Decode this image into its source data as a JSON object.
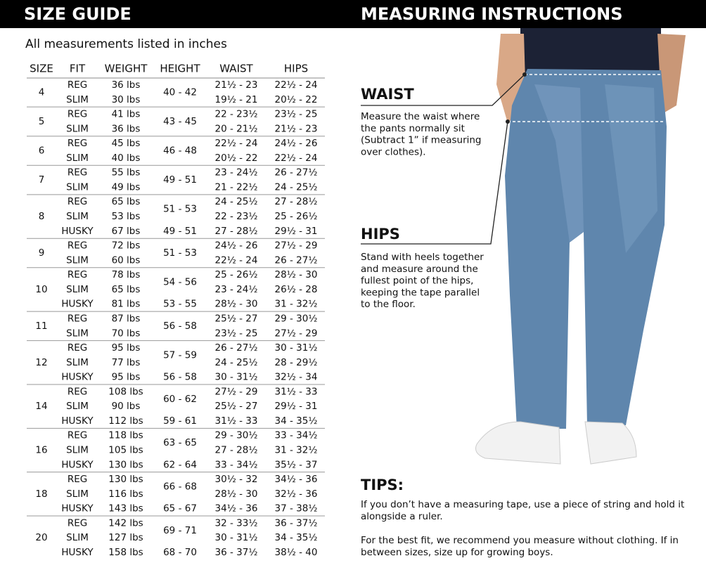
{
  "header": {
    "left_title": "SIZE GUIDE",
    "right_title": "MEASURING INSTRUCTIONS"
  },
  "table": {
    "note": "All measurements listed in inches",
    "columns": [
      "SIZE",
      "FIT",
      "WEIGHT",
      "HEIGHT",
      "WAIST",
      "HIPS"
    ],
    "groups": [
      {
        "size": "4",
        "bands": [
          {
            "height": "40 - 42",
            "rows": [
              [
                "REG",
                "36 lbs",
                "21½ - 23",
                "22½ - 24"
              ],
              [
                "SLIM",
                "30 lbs",
                "19½ - 21",
                "20½ - 22"
              ]
            ]
          }
        ]
      },
      {
        "size": "5",
        "bands": [
          {
            "height": "43 - 45",
            "rows": [
              [
                "REG",
                "41 lbs",
                "22 - 23½",
                "23½ - 25"
              ],
              [
                "SLIM",
                "36 lbs",
                "20 - 21½",
                "21½ - 23"
              ]
            ]
          }
        ]
      },
      {
        "size": "6",
        "bands": [
          {
            "height": "46 - 48",
            "rows": [
              [
                "REG",
                "45 lbs",
                "22½ - 24",
                "24½ - 26"
              ],
              [
                "SLIM",
                "40 lbs",
                "20½ - 22",
                "22½ - 24"
              ]
            ]
          }
        ]
      },
      {
        "size": "7",
        "bands": [
          {
            "height": "49 - 51",
            "rows": [
              [
                "REG",
                "55 lbs",
                "23 - 24½",
                "26 - 27½"
              ],
              [
                "SLIM",
                "49 lbs",
                "21 - 22½",
                "24 - 25½"
              ]
            ]
          }
        ]
      },
      {
        "size": "8",
        "bands": [
          {
            "height": "51 - 53",
            "rows": [
              [
                "REG",
                "65 lbs",
                "24 - 25½",
                "27 - 28½"
              ],
              [
                "SLIM",
                "53 lbs",
                "22 - 23½",
                "25 - 26½"
              ]
            ]
          },
          {
            "height": "49 - 51",
            "rows": [
              [
                "HUSKY",
                "67 lbs",
                "27 - 28½",
                "29½ - 31"
              ]
            ]
          }
        ]
      },
      {
        "size": "9",
        "bands": [
          {
            "height": "51 - 53",
            "rows": [
              [
                "REG",
                "72 lbs",
                "24½ - 26",
                "27½ - 29"
              ],
              [
                "SLIM",
                "60 lbs",
                "22½ - 24",
                "26 - 27½"
              ]
            ]
          }
        ]
      },
      {
        "size": "10",
        "bands": [
          {
            "height": "54 - 56",
            "rows": [
              [
                "REG",
                "78 lbs",
                "25 - 26½",
                "28½ - 30"
              ],
              [
                "SLIM",
                "65 lbs",
                "23 - 24½",
                "26½ - 28"
              ]
            ]
          },
          {
            "height": "53 - 55",
            "rows": [
              [
                "HUSKY",
                "81 lbs",
                "28½ - 30",
                "31 - 32½"
              ]
            ]
          }
        ]
      },
      {
        "size": "11",
        "bands": [
          {
            "height": "56 - 58",
            "rows": [
              [
                "REG",
                "87 lbs",
                "25½ - 27",
                "29 - 30½"
              ],
              [
                "SLIM",
                "70 lbs",
                "23½ - 25",
                "27½ - 29"
              ]
            ]
          }
        ]
      },
      {
        "size": "12",
        "bands": [
          {
            "height": "57 - 59",
            "rows": [
              [
                "REG",
                "95 lbs",
                "26 - 27½",
                "30 - 31½"
              ],
              [
                "SLIM",
                "77 lbs",
                "24 - 25½",
                "28 - 29½"
              ]
            ]
          },
          {
            "height": "56 - 58",
            "rows": [
              [
                "HUSKY",
                "95 lbs",
                "30 - 31½",
                "32½ - 34"
              ]
            ]
          }
        ]
      },
      {
        "size": "14",
        "bands": [
          {
            "height": "60 - 62",
            "rows": [
              [
                "REG",
                "108 lbs",
                "27½ - 29",
                "31½ - 33"
              ],
              [
                "SLIM",
                "90 lbs",
                "25½ - 27",
                "29½ - 31"
              ]
            ]
          },
          {
            "height": "59 - 61",
            "rows": [
              [
                "HUSKY",
                "112 lbs",
                "31½ - 33",
                "34 - 35½"
              ]
            ]
          }
        ]
      },
      {
        "size": "16",
        "bands": [
          {
            "height": "63 - 65",
            "rows": [
              [
                "REG",
                "118 lbs",
                "29 - 30½",
                "33 - 34½"
              ],
              [
                "SLIM",
                "105 lbs",
                "27 - 28½",
                "31 - 32½"
              ]
            ]
          },
          {
            "height": "62 - 64",
            "rows": [
              [
                "HUSKY",
                "130 lbs",
                "33 - 34½",
                "35½ - 37"
              ]
            ]
          }
        ]
      },
      {
        "size": "18",
        "bands": [
          {
            "height": "66 - 68",
            "rows": [
              [
                "REG",
                "130 lbs",
                "30½ - 32",
                "34½ - 36"
              ],
              [
                "SLIM",
                "116 lbs",
                "28½ - 30",
                "32½ - 36"
              ]
            ]
          },
          {
            "height": "65 - 67",
            "rows": [
              [
                "HUSKY",
                "143 lbs",
                "34½ - 36",
                "37 - 38½"
              ]
            ]
          }
        ]
      },
      {
        "size": "20",
        "bands": [
          {
            "height": "69 - 71",
            "rows": [
              [
                "REG",
                "142 lbs",
                "32 - 33½",
                "36 - 37½"
              ],
              [
                "SLIM",
                "127 lbs",
                "30 - 31½",
                "34 - 35½"
              ]
            ]
          },
          {
            "height": "68 - 70",
            "rows": [
              [
                "HUSKY",
                "158 lbs",
                "36 - 37½",
                "38½ - 40"
              ]
            ]
          }
        ]
      }
    ]
  },
  "instructions": {
    "waist": {
      "heading": "WAIST",
      "lines": [
        "Measure the waist where",
        "the pants normally sit",
        "(Subtract 1” if measuring",
        "over clothes)."
      ]
    },
    "hips": {
      "heading": "HIPS",
      "lines": [
        "Stand with heels together",
        "and measure around the",
        "fullest point of the hips,",
        "keeping the tape parallel",
        "to the floor."
      ]
    },
    "tips": {
      "heading": "TIPS:",
      "paragraphs": [
        [
          "If you don’t have a measuring tape, use a piece of string and hold it",
          "alongside a ruler."
        ],
        [
          "For the best fit, we recommend you measure without clothing. If in",
          "between sizes, size up for growing boys."
        ]
      ]
    }
  }
}
